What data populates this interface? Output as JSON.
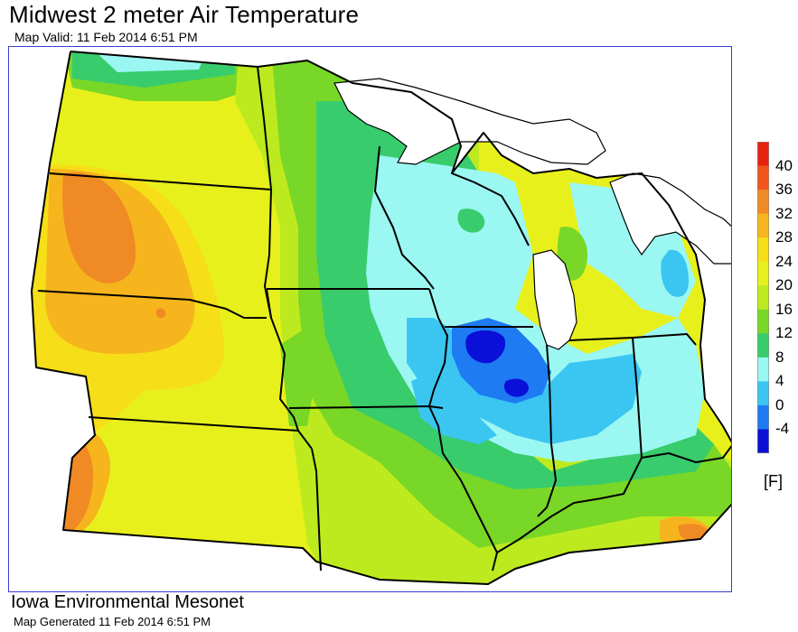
{
  "title": "Midwest 2 meter Air Temperature",
  "subtitle": "Map Valid: 11 Feb 2014 6:51 PM",
  "footer": {
    "org": "Iowa Environmental Mesonet",
    "generated": "Map Generated 11 Feb 2014 6:51 PM"
  },
  "legend": {
    "unit": "[F]",
    "ticks": [
      "40",
      "36",
      "32",
      "28",
      "24",
      "20",
      "16",
      "12",
      "8",
      "4",
      "0",
      "-4"
    ],
    "colors": [
      "#e8220c",
      "#f2541c",
      "#f08a24",
      "#f6b51c",
      "#f6de19",
      "#e8f01c",
      "#bdea1e",
      "#79d727",
      "#38cc6c",
      "#9bf7f2",
      "#3bc6f2",
      "#1e7bf2",
      "#0a10d8"
    ]
  },
  "map": {
    "lakes": [
      "Lake Superior",
      "Lake Michigan",
      "Lake Huron"
    ],
    "water_color": "#ffffff",
    "border_color": "#000000"
  }
}
